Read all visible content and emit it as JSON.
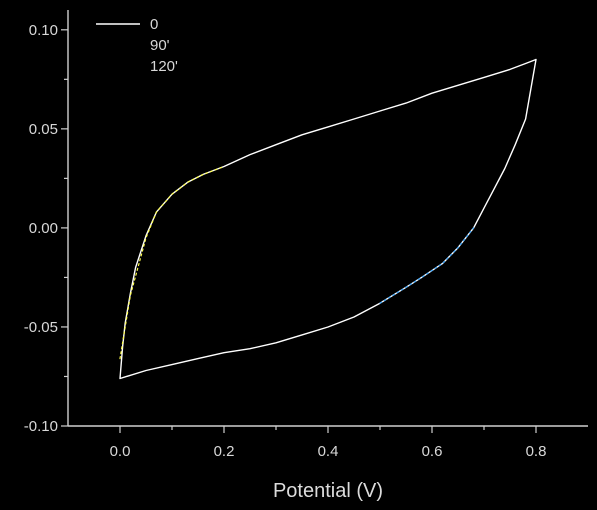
{
  "chart_data": {
    "type": "line",
    "title": "",
    "xlabel": "Potential (V)",
    "ylabel": "",
    "xlim": [
      -0.1,
      0.9
    ],
    "ylim": [
      -0.1,
      0.11
    ],
    "x_ticks": [
      "0.0",
      "0.2",
      "0.4",
      "0.6",
      "0.8"
    ],
    "y_ticks": [
      "-0.10",
      "-0.05",
      "0.00",
      "0.05",
      "0.10"
    ],
    "x_tick_values": [
      0.0,
      0.2,
      0.4,
      0.6,
      0.8
    ],
    "y_tick_values": [
      -0.1,
      -0.05,
      0.0,
      0.05,
      0.1
    ],
    "legend_position": "top-left",
    "grid": false,
    "series": [
      {
        "name": "0",
        "color": "#ffffff",
        "x": [
          0.8,
          0.79,
          0.78,
          0.76,
          0.74,
          0.72,
          0.7,
          0.68,
          0.65,
          0.62,
          0.58,
          0.55,
          0.5,
          0.45,
          0.4,
          0.35,
          0.3,
          0.25,
          0.2,
          0.15,
          0.1,
          0.05,
          0.0,
          0.005,
          0.01,
          0.02,
          0.03,
          0.05,
          0.07,
          0.1,
          0.13,
          0.16,
          0.2,
          0.25,
          0.3,
          0.35,
          0.4,
          0.45,
          0.5,
          0.55,
          0.6,
          0.65,
          0.7,
          0.75,
          0.78,
          0.8
        ],
        "y": [
          0.085,
          0.07,
          0.055,
          0.042,
          0.03,
          0.02,
          0.01,
          0.0,
          -0.01,
          -0.018,
          -0.025,
          -0.03,
          -0.038,
          -0.045,
          -0.05,
          -0.054,
          -0.058,
          -0.061,
          -0.063,
          -0.066,
          -0.069,
          -0.072,
          -0.076,
          -0.06,
          -0.048,
          -0.033,
          -0.02,
          -0.004,
          0.008,
          0.017,
          0.023,
          0.027,
          0.031,
          0.037,
          0.042,
          0.047,
          0.051,
          0.055,
          0.059,
          0.063,
          0.068,
          0.072,
          0.076,
          0.08,
          0.083,
          0.085
        ]
      },
      {
        "name": "90'",
        "color": "#ffff4d",
        "x": [
          0.0,
          0.02,
          0.05,
          0.07,
          0.1,
          0.13,
          0.16,
          0.2
        ],
        "y": [
          -0.066,
          -0.034,
          -0.005,
          0.008,
          0.017,
          0.023,
          0.027,
          0.031
        ]
      },
      {
        "name": "120'",
        "color": "#3ea8ff",
        "x": [
          0.5,
          0.55,
          0.58,
          0.62,
          0.65,
          0.68
        ],
        "y": [
          -0.038,
          -0.03,
          -0.025,
          -0.018,
          -0.01,
          0.0
        ]
      }
    ]
  }
}
